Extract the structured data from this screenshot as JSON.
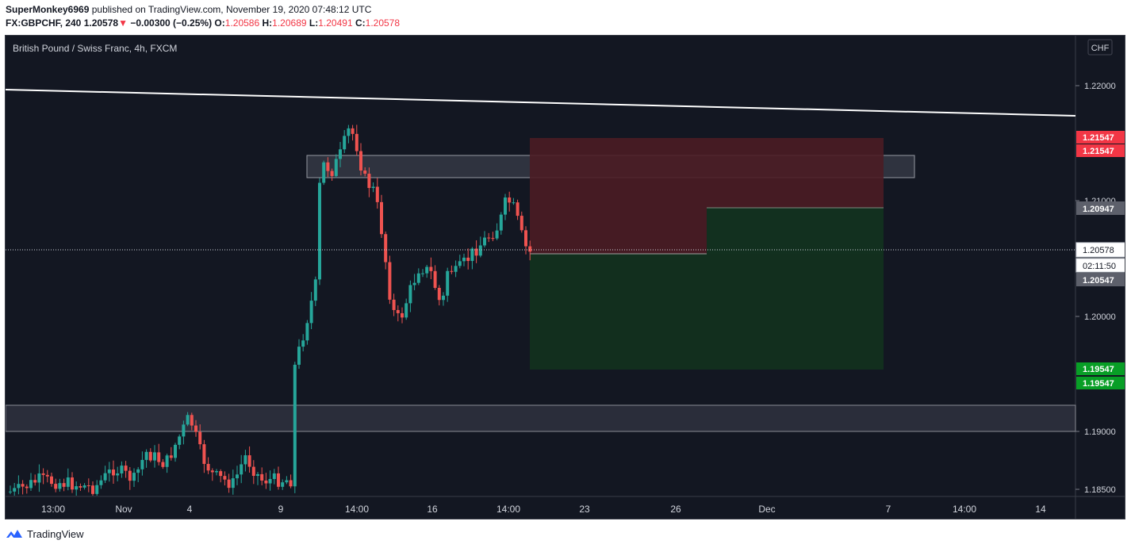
{
  "header": {
    "author": "SuperMonkey6969",
    "published_text": "published on TradingView.com, November 19, 2020 07:48:12 UTC",
    "symbol": "FX:GBPCHF, 240",
    "last_price": "1.20578",
    "change_arrow": "▼",
    "change": "−0.00300 (−0.25%)",
    "open_label": "O:",
    "open": "1.20586",
    "high_label": "H:",
    "high": "1.20689",
    "low_label": "L:",
    "low": "1.20491",
    "close_label": "C:",
    "close": "1.20578"
  },
  "chart": {
    "legend_title": "British Pound / Swiss Franc, 4h, FXCM",
    "currency_button": "CHF",
    "y_ticks": [
      "1.22000",
      "1.21000",
      "1.20000",
      "1.19000",
      "1.18500"
    ],
    "x_ticks": [
      "13:00",
      "Nov",
      "4",
      "9",
      "14:00",
      "16",
      "14:00",
      "23",
      "26",
      "Dec",
      "7",
      "14:00",
      "14"
    ],
    "price_labels": {
      "stop_1": "1.21547",
      "stop_2": "1.21547",
      "entry": "1.20947",
      "last": "1.20578",
      "countdown": "02:11:50",
      "current_pos": "1.20547",
      "target_1": "1.19547",
      "target_2": "1.19547"
    },
    "colors": {
      "background": "#131722",
      "up": "#26a69a",
      "down": "#ef5350",
      "stop_zone": "#4b1c24",
      "target_zone": "#12301f",
      "label_red": "#f23645",
      "label_green": "#089e26"
    }
  },
  "footer": {
    "brand": "TradingView",
    "logo_icon": "tradingview-logo-icon"
  }
}
